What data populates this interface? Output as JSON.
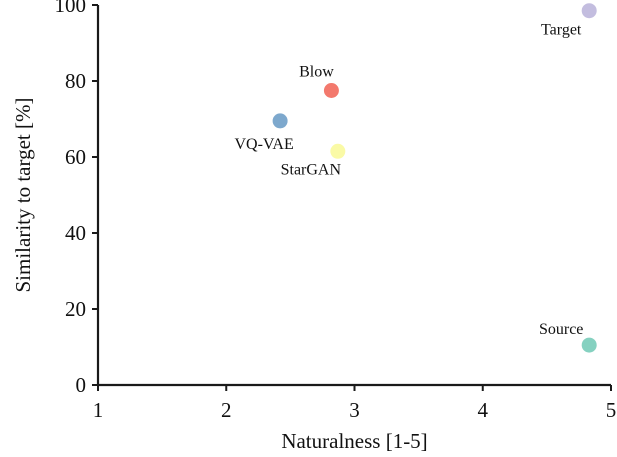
{
  "chart_data": {
    "type": "scatter",
    "xlabel": "Naturalness [1-5]",
    "ylabel": "Similarity to target [%]",
    "xlim": [
      1,
      5
    ],
    "ylim": [
      0,
      100
    ],
    "x_ticks": [
      1,
      2,
      3,
      4,
      5
    ],
    "y_ticks": [
      0,
      20,
      40,
      60,
      80,
      100
    ],
    "grid": false,
    "points": [
      {
        "label": "Target",
        "x": 4.83,
        "y": 98.5,
        "color": "#c3bddf"
      },
      {
        "label": "Blow",
        "x": 2.82,
        "y": 77.5,
        "color": "#f3796d"
      },
      {
        "label": "VQ-VAE",
        "x": 2.42,
        "y": 69.5,
        "color": "#7da8cd"
      },
      {
        "label": "StarGAN",
        "x": 2.87,
        "y": 61.5,
        "color": "#fafaa6"
      },
      {
        "label": "Source",
        "x": 4.83,
        "y": 10.5,
        "color": "#85d1c0"
      }
    ]
  }
}
